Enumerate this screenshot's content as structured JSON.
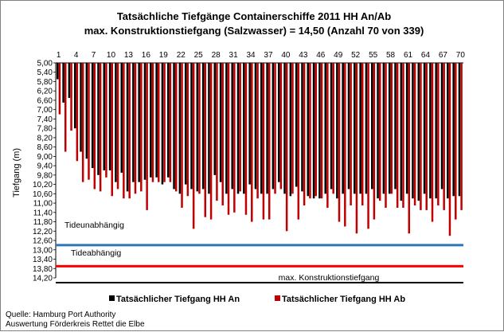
{
  "chart_data": {
    "type": "bar",
    "title": "Tatsächliche Tiefgänge Containerschiffe  2011 HH An/Ab",
    "subtitle": "max. Konstruktionstiefgang  (Salzwasser)  = 14,50 (Anzahl 70 von 339)",
    "ylabel": "Tiefgang (m)",
    "ylim": [
      5.0,
      14.2
    ],
    "y_ticks": [
      "5,00",
      "5,40",
      "5,80",
      "6,20",
      "6,60",
      "7,00",
      "7,40",
      "7,80",
      "8,20",
      "8,60",
      "9,00",
      "9,40",
      "9,80",
      "10,20",
      "10,60",
      "11,00",
      "11,40",
      "11,80",
      "12,20",
      "12,60",
      "13,00",
      "13,40",
      "13,80",
      "14,20"
    ],
    "y_inverted": true,
    "x_ticks": [
      "1",
      "4",
      "7",
      "10",
      "13",
      "16",
      "19",
      "22",
      "25",
      "28",
      "31",
      "34",
      "37",
      "40",
      "43",
      "46",
      "49",
      "52",
      "55",
      "58",
      "61",
      "64",
      "67",
      "70"
    ],
    "categories": [
      1,
      2,
      3,
      4,
      5,
      6,
      7,
      8,
      9,
      10,
      11,
      12,
      13,
      14,
      15,
      16,
      17,
      18,
      19,
      20,
      21,
      22,
      23,
      24,
      25,
      26,
      27,
      28,
      29,
      30,
      31,
      32,
      33,
      34,
      35,
      36,
      37,
      38,
      39,
      40,
      41,
      42,
      43,
      44,
      45,
      46,
      47,
      48,
      49,
      50,
      51,
      52,
      53,
      54,
      55,
      56,
      57,
      58,
      59,
      60,
      61,
      62,
      63,
      64,
      65,
      66,
      67,
      68,
      69,
      70
    ],
    "series": [
      {
        "name": "Tatsächlicher Tiefgang HH An",
        "color": "#000000",
        "values": [
          5.7,
          6.7,
          6.5,
          7.8,
          8.8,
          9.1,
          9.5,
          9.8,
          9.6,
          9.6,
          10.1,
          9.7,
          10.5,
          10.1,
          10.1,
          10.0,
          9.9,
          9.9,
          10.2,
          9.9,
          10.4,
          10.6,
          10.2,
          10.4,
          10.5,
          10.4,
          10.6,
          9.8,
          10.1,
          10.6,
          10.4,
          10.6,
          10.6,
          10.2,
          10.4,
          10.6,
          10.6,
          10.4,
          10.1,
          10.6,
          10.7,
          10.3,
          10.5,
          10.7,
          10.8,
          10.8,
          10.6,
          10.4,
          10.8,
          10.6,
          10.4,
          10.6,
          10.6,
          10.6,
          10.4,
          10.8,
          10.6,
          10.6,
          10.4,
          10.9,
          10.6,
          10.8,
          10.9,
          10.6,
          10.8,
          10.8,
          10.4,
          10.8,
          10.7,
          10.7
        ]
      },
      {
        "name": "Tatsächlicher Tiefgang HH Ab",
        "color": "#c00000",
        "values": [
          7.2,
          8.8,
          7.9,
          9.2,
          10.1,
          10.0,
          10.4,
          10.5,
          9.9,
          10.7,
          10.4,
          10.8,
          10.8,
          10.6,
          10.5,
          11.3,
          10.1,
          10.1,
          10.1,
          10.1,
          10.5,
          11.2,
          10.7,
          12.1,
          10.6,
          11.6,
          11.7,
          10.9,
          11.1,
          11.5,
          11.4,
          10.5,
          11.5,
          11.8,
          10.8,
          11.7,
          11.7,
          10.6,
          10.4,
          12.2,
          10.6,
          11.7,
          11.1,
          10.8,
          10.7,
          10.8,
          11.2,
          10.6,
          11.8,
          12.0,
          11.1,
          12.3,
          11.1,
          12.1,
          11.7,
          10.9,
          11.2,
          10.6,
          11.2,
          11.2,
          12.3,
          11.1,
          11.3,
          11.3,
          11.8,
          11.1,
          11.3,
          12.4,
          11.7,
          11.3
        ]
      }
    ],
    "reference_lines": [
      {
        "label": "Tideunabhängig",
        "value": 12.8,
        "color": "#2e75b6"
      },
      {
        "label": "Tideabhängig",
        "value": 13.7,
        "color": "#ff0000"
      },
      {
        "label": "max. Konstruktionstiefgang",
        "value": 14.5,
        "color": "#000000"
      }
    ],
    "legend": "bottom",
    "grid": false
  },
  "source_lines": [
    "Quelle: Hamburg Port Authority",
    "Auswertung Förderkreis Rettet die Elbe"
  ]
}
